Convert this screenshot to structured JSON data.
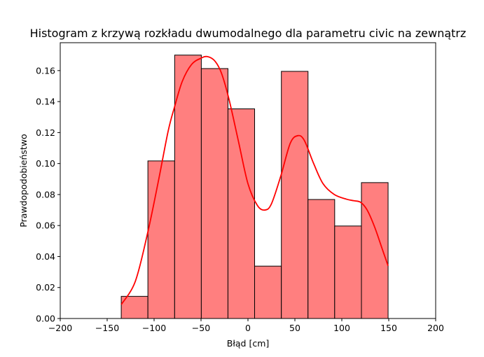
{
  "chart_data": {
    "type": "bar",
    "title": "Histogram z krzywą rozkładu dwumodalnego dla parametru civic na zewnątrz",
    "xlabel": "Błąd [cm]",
    "ylabel": "Prawdopodobieństwo",
    "xlim": [
      -200,
      200
    ],
    "ylim": [
      0,
      0.178
    ],
    "xticks": [
      "−200",
      "−150",
      "−100",
      "−50",
      "0",
      "50",
      "100",
      "150",
      "200"
    ],
    "xtick_values": [
      -200,
      -150,
      -100,
      -50,
      0,
      50,
      100,
      150,
      200
    ],
    "yticks": [
      "0.00",
      "0.02",
      "0.04",
      "0.06",
      "0.08",
      "0.10",
      "0.12",
      "0.14",
      "0.16"
    ],
    "ytick_values": [
      0,
      0.02,
      0.04,
      0.06,
      0.08,
      0.1,
      0.12,
      0.14,
      0.16
    ],
    "grid": false,
    "bins": [
      {
        "x0": -135,
        "x1": -106.6,
        "value": 0.0143
      },
      {
        "x0": -106.6,
        "x1": -78.1,
        "value": 0.1017
      },
      {
        "x0": -78.1,
        "x1": -49.7,
        "value": 0.17
      },
      {
        "x0": -49.7,
        "x1": -21.3,
        "value": 0.1613
      },
      {
        "x0": -21.3,
        "x1": 7.1,
        "value": 0.1353
      },
      {
        "x0": 7.1,
        "x1": 35.6,
        "value": 0.0338
      },
      {
        "x0": 35.6,
        "x1": 64.0,
        "value": 0.1595
      },
      {
        "x0": 64.0,
        "x1": 92.4,
        "value": 0.0768
      },
      {
        "x0": 92.4,
        "x1": 120.9,
        "value": 0.0597
      },
      {
        "x0": 120.9,
        "x1": 149.3,
        "value": 0.0877
      }
    ],
    "curve": {
      "x": [
        -135,
        -120,
        -106.6,
        -95,
        -85,
        -78,
        -70,
        -60,
        -50,
        -43,
        -35,
        -28,
        -20,
        -10,
        0,
        10,
        18,
        25,
        35,
        45,
        53,
        60,
        70,
        80,
        92,
        105,
        113,
        120,
        127,
        135,
        143,
        149.3
      ],
      "y": [
        0.009,
        0.024,
        0.056,
        0.09,
        0.121,
        0.137,
        0.153,
        0.164,
        0.168,
        0.169,
        0.166,
        0.158,
        0.141,
        0.114,
        0.087,
        0.073,
        0.07,
        0.074,
        0.092,
        0.113,
        0.118,
        0.115,
        0.1,
        0.087,
        0.08,
        0.077,
        0.076,
        0.075,
        0.07,
        0.059,
        0.045,
        0.034
      ]
    },
    "colors": {
      "bar_fill": "#ff7f7f",
      "bar_edge": "#000000",
      "curve": "#ff0000",
      "axes": "#000000"
    }
  }
}
